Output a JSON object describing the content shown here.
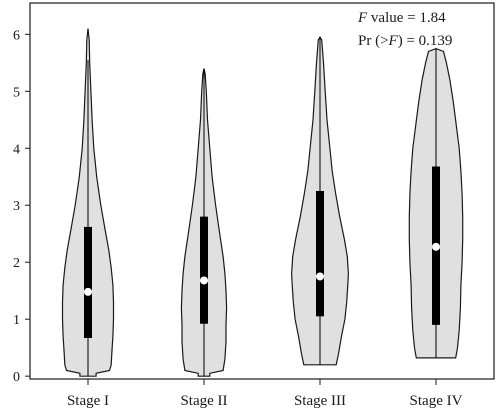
{
  "chart_data": {
    "type": "violin",
    "categories": [
      "Stage I",
      "Stage II",
      "Stage III",
      "Stage IV"
    ],
    "ylim": [
      -0.05,
      6.55
    ],
    "yticks": [
      0,
      1,
      2,
      3,
      4,
      5,
      6
    ],
    "violins": [
      {
        "category": "Stage I",
        "median": 1.48,
        "q1": 0.67,
        "q3": 2.62,
        "min": 0.0,
        "max": 5.55,
        "shape": [
          [
            0.0,
            0.14
          ],
          [
            0.05,
            0.14
          ],
          [
            0.1,
            0.37
          ],
          [
            0.2,
            0.4
          ],
          [
            0.4,
            0.41
          ],
          [
            0.7,
            0.43
          ],
          [
            1.0,
            0.44
          ],
          [
            1.3,
            0.44
          ],
          [
            1.6,
            0.43
          ],
          [
            1.9,
            0.4
          ],
          [
            2.2,
            0.36
          ],
          [
            2.6,
            0.29
          ],
          [
            3.0,
            0.22
          ],
          [
            3.5,
            0.15
          ],
          [
            4.0,
            0.1
          ],
          [
            4.5,
            0.07
          ],
          [
            5.0,
            0.05
          ],
          [
            5.5,
            0.03
          ],
          [
            5.9,
            0.02
          ],
          [
            6.1,
            0.0
          ]
        ]
      },
      {
        "category": "Stage II",
        "median": 1.68,
        "q1": 0.92,
        "q3": 2.8,
        "min": 0.0,
        "max": 5.4,
        "shape": [
          [
            0.0,
            0.1
          ],
          [
            0.05,
            0.1
          ],
          [
            0.1,
            0.33
          ],
          [
            0.3,
            0.36
          ],
          [
            0.6,
            0.38
          ],
          [
            0.9,
            0.38
          ],
          [
            1.2,
            0.39
          ],
          [
            1.5,
            0.38
          ],
          [
            1.8,
            0.36
          ],
          [
            2.1,
            0.33
          ],
          [
            2.5,
            0.27
          ],
          [
            3.0,
            0.2
          ],
          [
            3.5,
            0.14
          ],
          [
            4.0,
            0.1
          ],
          [
            4.5,
            0.06
          ],
          [
            5.0,
            0.04
          ],
          [
            5.3,
            0.02
          ],
          [
            5.4,
            0.0
          ]
        ]
      },
      {
        "category": "Stage III",
        "median": 1.75,
        "q1": 1.05,
        "q3": 3.25,
        "min": 0.2,
        "max": 5.95,
        "shape": [
          [
            0.2,
            0.28
          ],
          [
            0.4,
            0.32
          ],
          [
            0.7,
            0.37
          ],
          [
            1.0,
            0.43
          ],
          [
            1.3,
            0.46
          ],
          [
            1.6,
            0.48
          ],
          [
            1.8,
            0.49
          ],
          [
            2.1,
            0.47
          ],
          [
            2.4,
            0.42
          ],
          [
            2.8,
            0.34
          ],
          [
            3.2,
            0.27
          ],
          [
            3.6,
            0.21
          ],
          [
            4.0,
            0.17
          ],
          [
            4.5,
            0.12
          ],
          [
            5.0,
            0.09
          ],
          [
            5.5,
            0.06
          ],
          [
            5.9,
            0.03
          ],
          [
            5.95,
            0.0
          ]
        ]
      },
      {
        "category": "Stage IV",
        "median": 2.27,
        "q1": 0.9,
        "q3": 3.68,
        "min": 0.32,
        "max": 5.75,
        "shape": [
          [
            0.32,
            0.34
          ],
          [
            0.5,
            0.37
          ],
          [
            0.8,
            0.4
          ],
          [
            1.2,
            0.42
          ],
          [
            1.6,
            0.43
          ],
          [
            2.0,
            0.45
          ],
          [
            2.4,
            0.46
          ],
          [
            2.8,
            0.46
          ],
          [
            3.2,
            0.45
          ],
          [
            3.6,
            0.43
          ],
          [
            4.0,
            0.4
          ],
          [
            4.4,
            0.35
          ],
          [
            4.8,
            0.3
          ],
          [
            5.2,
            0.24
          ],
          [
            5.5,
            0.18
          ],
          [
            5.7,
            0.13
          ],
          [
            5.75,
            0.0
          ]
        ]
      }
    ],
    "annotation": {
      "f_symbol": "F",
      "f_text": " value = 1.84",
      "pr_prefix": "Pr (>",
      "pr_symbol": "F",
      "pr_suffix": ") = 0.139"
    },
    "colors": {
      "violin_fill": "#e0e0e0",
      "outline": "#1a1a1a",
      "box": "#000000",
      "median_dot": "#ffffff"
    }
  }
}
